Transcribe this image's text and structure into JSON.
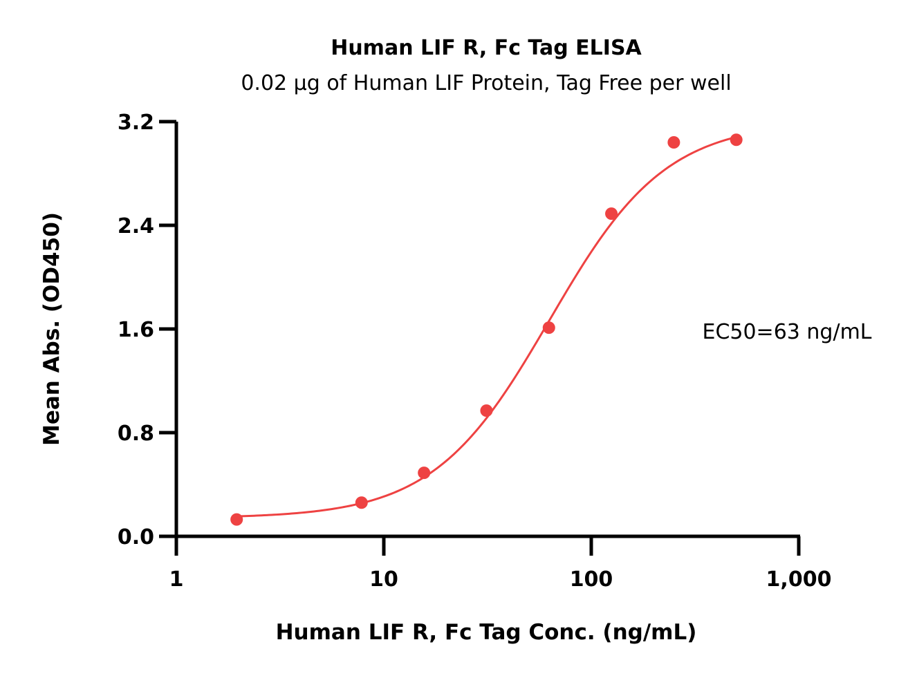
{
  "chart_data": {
    "type": "scatter",
    "title": "Human LIF R, Fc Tag ELISA",
    "subtitle": "0.02 μg of Human LIF Protein, Tag Free  per well",
    "xlabel": "Human LIF R, Fc Tag Conc. (ng/mL)",
    "ylabel": "Mean Abs. (OD450)",
    "x_scale": "log",
    "xlim": [
      1,
      1000
    ],
    "ylim": [
      0,
      3.2
    ],
    "x_ticks": [
      1,
      10,
      100,
      1000
    ],
    "x_tick_labels": [
      "1",
      "10",
      "100",
      "1,000"
    ],
    "y_ticks": [
      0,
      0.8,
      1.6,
      2.4,
      3.2
    ],
    "y_tick_labels": [
      "0.0",
      "0.8",
      "1.6",
      "2.4",
      "3.2"
    ],
    "grid": false,
    "series": [
      {
        "x": [
          1.953,
          7.81,
          15.63,
          31.25,
          62.5,
          125,
          250,
          500
        ],
        "y": [
          0.13,
          0.26,
          0.49,
          0.97,
          1.61,
          2.49,
          3.04,
          3.06
        ],
        "color": "#ee4242",
        "fit": "4PL",
        "fit_params": {
          "bottom": 0.14,
          "top": 3.2,
          "ec50": 63,
          "hill": 1.55
        }
      }
    ],
    "annotations": [
      {
        "text": "EC50=63 ng/mL"
      }
    ]
  }
}
